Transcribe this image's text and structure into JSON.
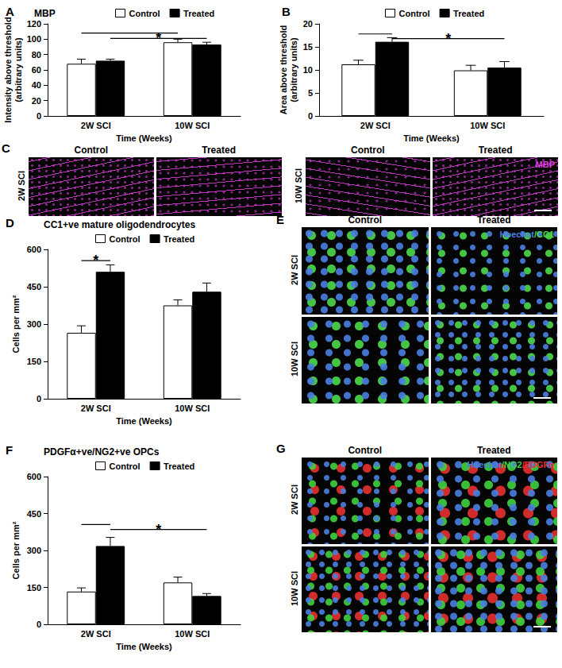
{
  "chart_data": [
    {
      "type": "bar",
      "panel_label": "A",
      "title": "MBP",
      "y_label": "Intensity above threshold\n(arbitrary units)",
      "x_label": "Time (Weeks)",
      "categories": [
        "2W SCI",
        "10W SCI"
      ],
      "series": [
        {
          "name": "Control",
          "color": "#ffffff",
          "values": [
            68,
            96
          ],
          "errors": [
            6,
            4
          ]
        },
        {
          "name": "Treated",
          "color": "#000000",
          "values": [
            72,
            93
          ],
          "errors": [
            2,
            3
          ]
        }
      ],
      "ylim": [
        0,
        120
      ],
      "yticks": [
        0,
        20,
        40,
        60,
        80,
        100,
        120
      ],
      "grid": false,
      "legend": "top",
      "significance": [
        {
          "from": [
            "2W SCI",
            "Control"
          ],
          "to": [
            "10W SCI",
            "Control"
          ],
          "y": 108
        },
        {
          "from": [
            "2W SCI",
            "Treated"
          ],
          "to": [
            "10W SCI",
            "Treated"
          ],
          "y": 101,
          "label": "*"
        }
      ]
    },
    {
      "type": "bar",
      "panel_label": "B",
      "y_label": "Area above threshold\n(arbitrary units)",
      "x_label": "Time (Weeks)",
      "categories": [
        "2W SCI",
        "10W SCI"
      ],
      "series": [
        {
          "name": "Control",
          "color": "#ffffff",
          "values": [
            11.2,
            9.9
          ],
          "errors": [
            0.9,
            1.1
          ]
        },
        {
          "name": "Treated",
          "color": "#000000",
          "values": [
            16.1,
            10.5
          ],
          "errors": [
            0.9,
            1.3
          ]
        }
      ],
      "ylim": [
        0,
        20
      ],
      "yticks": [
        0,
        5,
        10,
        15,
        20
      ],
      "grid": false,
      "legend": "top",
      "significance": [
        {
          "from": [
            "2W SCI",
            "Control"
          ],
          "to": [
            "2W SCI",
            "Treated"
          ],
          "y": 17.8
        },
        {
          "from": [
            "2W SCI",
            "Treated"
          ],
          "to": [
            "10W SCI",
            "Treated"
          ],
          "y": 16.8,
          "label": "*"
        }
      ]
    },
    {
      "type": "bar",
      "panel_label": "D",
      "title": "CC1+ve mature oligodendrocytes",
      "y_label": "Cells per mm²",
      "x_label": "Time (Weeks)",
      "categories": [
        "2W SCI",
        "10W SCI"
      ],
      "series": [
        {
          "name": "Control",
          "color": "#ffffff",
          "values": [
            265,
            375
          ],
          "errors": [
            28,
            22
          ]
        },
        {
          "name": "Treated",
          "color": "#000000",
          "values": [
            510,
            430
          ],
          "errors": [
            28,
            35
          ]
        }
      ],
      "ylim": [
        0,
        600
      ],
      "yticks": [
        0,
        150,
        300,
        450,
        600
      ],
      "grid": false,
      "legend": "top",
      "significance": [
        {
          "from": [
            "2W SCI",
            "Control"
          ],
          "to": [
            "2W SCI",
            "Treated"
          ],
          "y": 555,
          "label": "*"
        }
      ]
    },
    {
      "type": "bar",
      "panel_label": "F",
      "title": "PDGFα+ve/NG2+ve OPCs",
      "y_label": "Cells per mm²",
      "x_label": "Time (Weeks)",
      "categories": [
        "2W SCI",
        "10W SCI"
      ],
      "series": [
        {
          "name": "Control",
          "color": "#ffffff",
          "values": [
            133,
            170
          ],
          "errors": [
            15,
            22
          ]
        },
        {
          "name": "Treated",
          "color": "#000000",
          "values": [
            318,
            115
          ],
          "errors": [
            35,
            10
          ]
        }
      ],
      "ylim": [
        0,
        600
      ],
      "yticks": [
        0,
        150,
        300,
        450,
        600
      ],
      "grid": false,
      "legend": "top",
      "significance": [
        {
          "from": [
            "2W SCI",
            "Control"
          ],
          "to": [
            "2W SCI",
            "Treated"
          ],
          "y": 405
        },
        {
          "from": [
            "2W SCI",
            "Treated"
          ],
          "to": [
            "10W SCI",
            "Treated"
          ],
          "y": 385,
          "label": "*"
        }
      ]
    }
  ],
  "image_panels": [
    {
      "panel_label": "C",
      "blocks": [
        {
          "columns": [
            "Control",
            "Treated"
          ],
          "rows": [
            "2W SCI"
          ]
        },
        {
          "columns": [
            "Control",
            "Treated"
          ],
          "rows": [
            "10W SCI"
          ]
        }
      ],
      "stain": [
        {
          "text": "MBP",
          "color": "#e03de0"
        }
      ]
    },
    {
      "panel_label": "E",
      "blocks": [
        {
          "columns": [
            "Control",
            "Treated"
          ],
          "rows": [
            "2W SCI",
            "10W SCI"
          ]
        }
      ],
      "stain": [
        {
          "text": "Hoechst",
          "color": "#4a7fe0"
        },
        {
          "text": "/CC1",
          "color": "#4cd94c"
        }
      ]
    },
    {
      "panel_label": "G",
      "blocks": [
        {
          "columns": [
            "Control",
            "Treated"
          ],
          "rows": [
            "2W SCI",
            "10W SCI"
          ]
        }
      ],
      "stain": [
        {
          "text": "Hoechst",
          "color": "#4a7fe0"
        },
        {
          "text": "/NG2",
          "color": "#3fd23f"
        },
        {
          "text": "/PDGFα",
          "color": "#e83030"
        }
      ]
    }
  ]
}
